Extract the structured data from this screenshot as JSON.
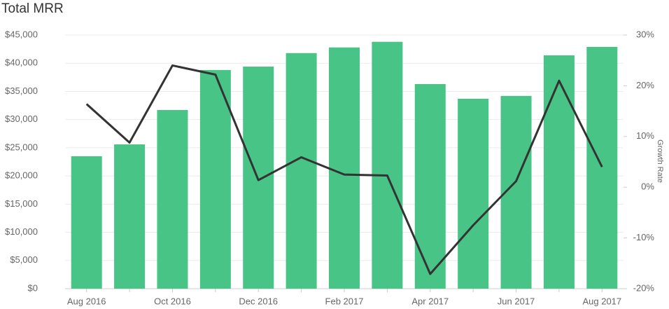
{
  "chart_data": {
    "type": "bar-line",
    "title": "Total MRR",
    "categories": [
      "Aug 2016",
      null,
      "Oct 2016",
      null,
      "Dec 2016",
      null,
      "Feb 2017",
      null,
      "Apr 2017",
      null,
      "Jun 2017",
      null,
      "Aug 2017"
    ],
    "series": [
      {
        "name": "Total MRR",
        "type": "bar",
        "color": "#48c486",
        "values": [
          23500,
          25600,
          31700,
          38800,
          39400,
          41800,
          42800,
          43800,
          36300,
          33700,
          34200,
          41400,
          42900
        ]
      },
      {
        "name": "Growth Rate",
        "type": "line",
        "axis": "y2",
        "color": "#333333",
        "values": [
          16.4,
          8.8,
          24.0,
          22.2,
          1.4,
          5.9,
          2.5,
          2.3,
          -17.1,
          -7.5,
          1.2,
          21.0,
          4.0
        ]
      }
    ],
    "ylim": [
      0,
      45000
    ],
    "yticks": [
      {
        "value": 0,
        "label": "$0"
      },
      {
        "value": 5000,
        "label": "$5,000"
      },
      {
        "value": 10000,
        "label": "$10,000"
      },
      {
        "value": 15000,
        "label": "$15,000"
      },
      {
        "value": 20000,
        "label": "$20,000"
      },
      {
        "value": 25000,
        "label": "$25,000"
      },
      {
        "value": 30000,
        "label": "$30,000"
      },
      {
        "value": 35000,
        "label": "$35,000"
      },
      {
        "value": 40000,
        "label": "$40,000"
      },
      {
        "value": 45000,
        "label": "$45,000"
      }
    ],
    "y2lim": [
      -20,
      30
    ],
    "y2ticks": [
      {
        "value": -20,
        "label": "-20%"
      },
      {
        "value": -10,
        "label": "-10%"
      },
      {
        "value": 0,
        "label": "0%"
      },
      {
        "value": 10,
        "label": "10%"
      },
      {
        "value": 20,
        "label": "20%"
      },
      {
        "value": 30,
        "label": "30%"
      }
    ],
    "y2label": "Growth Rate",
    "grid": true
  }
}
